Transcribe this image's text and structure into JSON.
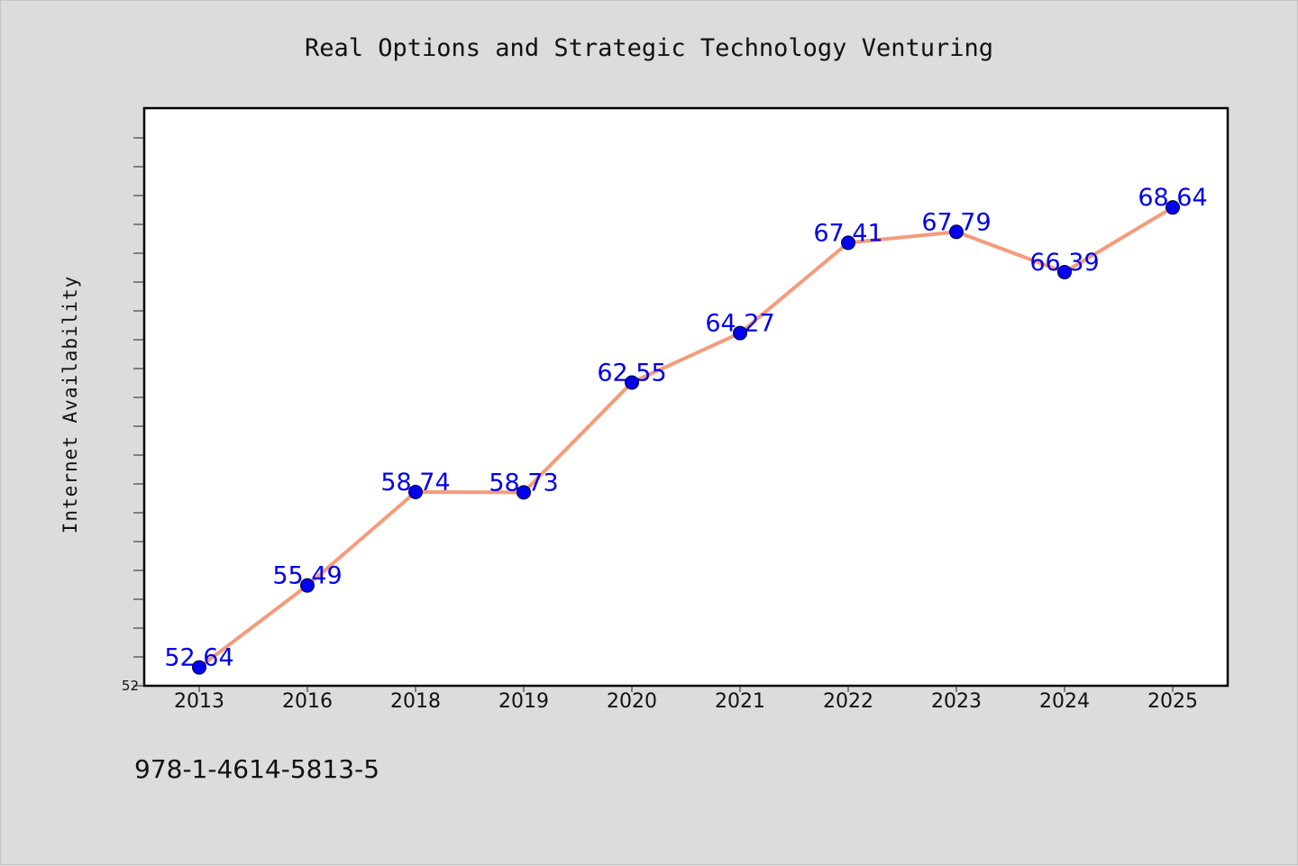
{
  "chart_data": {
    "type": "line",
    "title": "Real Options and Strategic Technology Venturing",
    "xlabel": "",
    "ylabel": "Internet Availability",
    "categories": [
      "2013",
      "2016",
      "2018",
      "2019",
      "2020",
      "2021",
      "2022",
      "2023",
      "2024",
      "2025"
    ],
    "series": [
      {
        "values": [
          52.64,
          55.49,
          58.74,
          58.73,
          62.55,
          64.27,
          67.41,
          67.79,
          66.39,
          68.64
        ],
        "labels": [
          "52.64",
          "55.49",
          "58.74",
          "58.73",
          "62.55",
          "64.27",
          "67.41",
          "67.79",
          "66.39",
          "68.64"
        ],
        "line_color": "#f59b7a",
        "marker_color": "#0000ee"
      }
    ],
    "ylim": [
      52,
      72
    ],
    "ytick_labels": [
      "52"
    ],
    "grid": false,
    "legend": "none"
  },
  "footnote": "978-1-4614-5813-5",
  "colors": {
    "background": "#dcdcdc",
    "plot_background": "#ffffff",
    "line": "#f59b7a",
    "marker": "#0000ee",
    "data_label": "#0000ee"
  }
}
